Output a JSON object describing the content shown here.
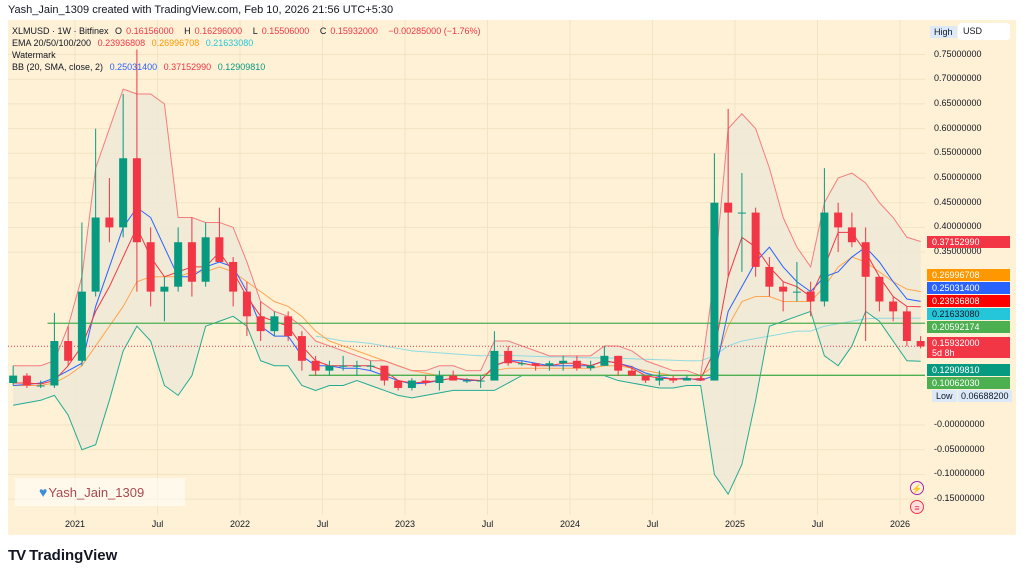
{
  "attribution": "Yash_Jain_1309 created with TradingView.com, Feb 10, 2026 21:56 UTC+5:30",
  "legend": {
    "symbol": "XLMUSD · 1W · Bitfinex",
    "o_label": "O",
    "o": "0.16156000",
    "h_label": "H",
    "h": "0.16296000",
    "l_label": "L",
    "l": "0.15506000",
    "c_label": "C",
    "c": "0.15932000",
    "change": "−0.00285000 (−1.76%)",
    "ema_label": "EMA 20/50/100/200",
    "ema20": "0.23936808",
    "ema50": "0.26996708",
    "ema100": "0.21633080",
    "watermark_label": "Watermark",
    "bb_label": "BB (20, SMA, close, 2)",
    "bb_basis": "0.25031400",
    "bb_upper": "0.37152990",
    "bb_lower": "0.12909810"
  },
  "price_scale": {
    "high_badge": "High",
    "currency": "USD",
    "low_badge": "Low",
    "low_value": "0.06688200",
    "tags": [
      {
        "text": "0.37152990",
        "color": "#f23645",
        "text_color": "#ffffff"
      },
      {
        "text": "0.26996708",
        "color": "#ff9800",
        "text_color": "#ffffff"
      },
      {
        "text": "0.25031400",
        "color": "#2962ff",
        "text_color": "#ffffff"
      },
      {
        "text": "0.23936808",
        "color": "#ff0000",
        "text_color": "#ffffff"
      },
      {
        "text": "0.21633080",
        "color": "#26c6da",
        "text_color": "#131722"
      },
      {
        "text": "0.20592174",
        "color": "#4caf50",
        "text_color": "#ffffff"
      },
      {
        "text": "0.15932000",
        "sub": "5d 8h",
        "color": "#f23645",
        "text_color": "#ffffff"
      },
      {
        "text": "0.12909810",
        "color": "#089981",
        "text_color": "#ffffff"
      },
      {
        "text": "0.10062030",
        "color": "#4caf50",
        "text_color": "#ffffff"
      }
    ]
  },
  "watermark": {
    "text": "Yash_Jain_1309",
    "icon": "blue-heart-icon"
  },
  "branding": {
    "logo_text": "TradingView",
    "logo_mark": "TV"
  },
  "icons": [
    "lightning-icon",
    "us-flag-icon"
  ],
  "colors": {
    "background": "#fef1d6",
    "up": "#089981",
    "down": "#f23645",
    "bb_upper": "#f77c80",
    "bb_lower": "#22ab94",
    "bb_basis": "#2962ff",
    "bb_fill": "#ede9d6",
    "ema20": "#f23645",
    "ema50": "#ffa54f",
    "ema100": "#8fdbe0",
    "hline": "#4caf50"
  },
  "chart_data": {
    "type": "candlestick",
    "title": "XLMUSD · 1W · Bitfinex",
    "ylim": [
      -0.17,
      0.78
    ],
    "grid": true,
    "y_ticks": [
      "0.75000000",
      "0.70000000",
      "0.65000000",
      "0.60000000",
      "0.55000000",
      "0.50000000",
      "0.45000000",
      "0.40000000",
      "0.35000000",
      "-0.00000000",
      "-0.05000000",
      "-0.10000000",
      "-0.15000000"
    ],
    "y_tick_values": [
      0.75,
      0.7,
      0.65,
      0.6,
      0.55,
      0.5,
      0.45,
      0.4,
      0.35,
      0,
      -0.05,
      -0.1,
      -0.15
    ],
    "x_ticks": [
      {
        "label": "2021",
        "month": "2021-01"
      },
      {
        "label": "Jul",
        "month": "2021-07"
      },
      {
        "label": "2022",
        "month": "2022-01"
      },
      {
        "label": "Jul",
        "month": "2022-07"
      },
      {
        "label": "2023",
        "month": "2023-01"
      },
      {
        "label": "Jul",
        "month": "2023-07"
      },
      {
        "label": "2024",
        "month": "2024-01"
      },
      {
        "label": "Jul",
        "month": "2024-07"
      },
      {
        "label": "2025",
        "month": "2025-01"
      },
      {
        "label": "Jul",
        "month": "2025-07"
      },
      {
        "label": "2026",
        "month": "2026-01"
      }
    ],
    "start_month": "2020-08",
    "ohlc": [
      [
        0.085,
        0.12,
        0.08,
        0.1
      ],
      [
        0.1,
        0.105,
        0.075,
        0.08
      ],
      [
        0.08,
        0.09,
        0.075,
        0.08
      ],
      [
        0.08,
        0.227,
        0.075,
        0.17
      ],
      [
        0.17,
        0.2,
        0.12,
        0.13
      ],
      [
        0.13,
        0.41,
        0.12,
        0.27
      ],
      [
        0.27,
        0.6,
        0.26,
        0.42
      ],
      [
        0.42,
        0.5,
        0.37,
        0.4
      ],
      [
        0.4,
        0.67,
        0.38,
        0.54
      ],
      [
        0.54,
        0.76,
        0.27,
        0.37
      ],
      [
        0.37,
        0.4,
        0.24,
        0.27
      ],
      [
        0.27,
        0.3,
        0.21,
        0.28
      ],
      [
        0.28,
        0.4,
        0.27,
        0.37
      ],
      [
        0.37,
        0.42,
        0.26,
        0.29
      ],
      [
        0.29,
        0.41,
        0.28,
        0.38
      ],
      [
        0.38,
        0.44,
        0.33,
        0.33
      ],
      [
        0.33,
        0.34,
        0.24,
        0.27
      ],
      [
        0.27,
        0.29,
        0.18,
        0.22
      ],
      [
        0.22,
        0.25,
        0.17,
        0.19
      ],
      [
        0.19,
        0.23,
        0.18,
        0.22
      ],
      [
        0.22,
        0.23,
        0.17,
        0.18
      ],
      [
        0.18,
        0.19,
        0.11,
        0.13
      ],
      [
        0.13,
        0.14,
        0.1,
        0.11
      ],
      [
        0.11,
        0.13,
        0.1,
        0.12
      ],
      [
        0.12,
        0.14,
        0.11,
        0.12
      ],
      [
        0.12,
        0.13,
        0.1,
        0.12
      ],
      [
        0.12,
        0.13,
        0.11,
        0.12
      ],
      [
        0.12,
        0.12,
        0.08,
        0.09
      ],
      [
        0.09,
        0.09,
        0.07,
        0.075
      ],
      [
        0.075,
        0.095,
        0.07,
        0.09
      ],
      [
        0.09,
        0.1,
        0.08,
        0.085
      ],
      [
        0.085,
        0.11,
        0.07,
        0.1
      ],
      [
        0.1,
        0.11,
        0.09,
        0.09
      ],
      [
        0.09,
        0.095,
        0.085,
        0.09
      ],
      [
        0.09,
        0.1,
        0.075,
        0.09
      ],
      [
        0.09,
        0.19,
        0.09,
        0.15
      ],
      [
        0.15,
        0.16,
        0.12,
        0.125
      ],
      [
        0.125,
        0.13,
        0.12,
        0.125
      ],
      [
        0.125,
        0.125,
        0.11,
        0.12
      ],
      [
        0.12,
        0.13,
        0.11,
        0.125
      ],
      [
        0.125,
        0.14,
        0.11,
        0.13
      ],
      [
        0.13,
        0.14,
        0.11,
        0.115
      ],
      [
        0.115,
        0.13,
        0.11,
        0.12
      ],
      [
        0.12,
        0.16,
        0.12,
        0.14
      ],
      [
        0.14,
        0.14,
        0.1,
        0.11
      ],
      [
        0.11,
        0.12,
        0.1,
        0.1
      ],
      [
        0.1,
        0.1,
        0.085,
        0.09
      ],
      [
        0.09,
        0.11,
        0.08,
        0.095
      ],
      [
        0.095,
        0.1,
        0.085,
        0.09
      ],
      [
        0.09,
        0.1,
        0.09,
        0.095
      ],
      [
        0.095,
        0.1,
        0.09,
        0.09
      ],
      [
        0.09,
        0.55,
        0.09,
        0.45
      ],
      [
        0.45,
        0.64,
        0.3,
        0.43
      ],
      [
        0.43,
        0.51,
        0.31,
        0.43
      ],
      [
        0.43,
        0.44,
        0.3,
        0.32
      ],
      [
        0.32,
        0.34,
        0.26,
        0.28
      ],
      [
        0.28,
        0.29,
        0.23,
        0.27
      ],
      [
        0.27,
        0.33,
        0.25,
        0.27
      ],
      [
        0.27,
        0.29,
        0.22,
        0.25
      ],
      [
        0.25,
        0.52,
        0.24,
        0.43
      ],
      [
        0.43,
        0.45,
        0.35,
        0.4
      ],
      [
        0.4,
        0.43,
        0.36,
        0.37
      ],
      [
        0.37,
        0.4,
        0.17,
        0.3
      ],
      [
        0.3,
        0.3,
        0.23,
        0.25
      ],
      [
        0.25,
        0.26,
        0.21,
        0.23
      ],
      [
        0.23,
        0.24,
        0.16,
        0.17
      ],
      [
        0.17,
        0.18,
        0.155,
        0.159
      ]
    ],
    "bb_upper": [
      0.12,
      0.12,
      0.12,
      0.13,
      0.2,
      0.3,
      0.52,
      0.6,
      0.68,
      0.67,
      0.67,
      0.65,
      0.42,
      0.42,
      0.41,
      0.41,
      0.4,
      0.33,
      0.25,
      0.23,
      0.22,
      0.2,
      0.17,
      0.16,
      0.15,
      0.14,
      0.13,
      0.13,
      0.12,
      0.11,
      0.11,
      0.12,
      0.12,
      0.11,
      0.11,
      0.17,
      0.17,
      0.16,
      0.15,
      0.14,
      0.14,
      0.14,
      0.14,
      0.16,
      0.16,
      0.15,
      0.13,
      0.12,
      0.11,
      0.11,
      0.1,
      0.3,
      0.6,
      0.63,
      0.6,
      0.52,
      0.42,
      0.36,
      0.32,
      0.45,
      0.5,
      0.51,
      0.49,
      0.45,
      0.42,
      0.38,
      0.3715
    ],
    "bb_lower": [
      0.04,
      0.045,
      0.05,
      0.06,
      0.02,
      -0.05,
      -0.04,
      0.05,
      0.15,
      0.2,
      0.17,
      0.08,
      0.06,
      0.1,
      0.2,
      0.21,
      0.22,
      0.2,
      0.13,
      0.12,
      0.12,
      0.08,
      0.07,
      0.08,
      0.08,
      0.09,
      0.08,
      0.07,
      0.06,
      0.055,
      0.06,
      0.065,
      0.07,
      0.07,
      0.07,
      0.07,
      0.085,
      0.1,
      0.1,
      0.1,
      0.1,
      0.1,
      0.1,
      0.1,
      0.09,
      0.085,
      0.08,
      0.075,
      0.075,
      0.08,
      0.08,
      -0.1,
      -0.14,
      -0.08,
      0.05,
      0.2,
      0.21,
      0.22,
      0.23,
      0.14,
      0.12,
      0.16,
      0.23,
      0.21,
      0.17,
      0.13,
      0.1291
    ],
    "bb_basis": [
      0.08,
      0.082,
      0.085,
      0.095,
      0.11,
      0.125,
      0.24,
      0.32,
      0.4,
      0.44,
      0.42,
      0.36,
      0.3,
      0.3,
      0.32,
      0.33,
      0.32,
      0.27,
      0.2,
      0.18,
      0.18,
      0.14,
      0.12,
      0.12,
      0.115,
      0.115,
      0.11,
      0.1,
      0.09,
      0.083,
      0.085,
      0.09,
      0.095,
      0.09,
      0.09,
      0.12,
      0.13,
      0.13,
      0.125,
      0.12,
      0.12,
      0.12,
      0.12,
      0.13,
      0.125,
      0.118,
      0.105,
      0.098,
      0.093,
      0.095,
      0.09,
      0.1,
      0.23,
      0.28,
      0.33,
      0.36,
      0.32,
      0.29,
      0.27,
      0.3,
      0.31,
      0.34,
      0.36,
      0.33,
      0.29,
      0.255,
      0.2503
    ],
    "ema20": [
      0.085,
      0.085,
      0.083,
      0.09,
      0.12,
      0.16,
      0.23,
      0.28,
      0.34,
      0.4,
      0.34,
      0.3,
      0.31,
      0.32,
      0.32,
      0.35,
      0.31,
      0.26,
      0.22,
      0.21,
      0.2,
      0.16,
      0.13,
      0.12,
      0.12,
      0.12,
      0.12,
      0.11,
      0.09,
      0.085,
      0.087,
      0.09,
      0.095,
      0.092,
      0.09,
      0.12,
      0.13,
      0.125,
      0.12,
      0.12,
      0.125,
      0.125,
      0.12,
      0.13,
      0.125,
      0.115,
      0.1,
      0.095,
      0.093,
      0.093,
      0.093,
      0.15,
      0.3,
      0.38,
      0.36,
      0.32,
      0.29,
      0.28,
      0.26,
      0.32,
      0.39,
      0.39,
      0.35,
      0.3,
      0.26,
      0.24,
      0.2394
    ],
    "ema50": [
      0.08,
      0.08,
      0.08,
      0.085,
      0.1,
      0.12,
      0.16,
      0.2,
      0.24,
      0.29,
      0.3,
      0.3,
      0.3,
      0.31,
      0.31,
      0.32,
      0.31,
      0.29,
      0.27,
      0.25,
      0.24,
      0.22,
      0.19,
      0.17,
      0.16,
      0.15,
      0.14,
      0.13,
      0.12,
      0.11,
      0.105,
      0.1,
      0.1,
      0.1,
      0.1,
      0.11,
      0.115,
      0.115,
      0.115,
      0.115,
      0.115,
      0.115,
      0.115,
      0.12,
      0.12,
      0.115,
      0.11,
      0.105,
      0.1,
      0.1,
      0.1,
      0.12,
      0.2,
      0.25,
      0.26,
      0.26,
      0.25,
      0.25,
      0.25,
      0.28,
      0.32,
      0.34,
      0.33,
      0.31,
      0.29,
      0.275,
      0.27
    ],
    "ema100": [
      null,
      null,
      null,
      null,
      null,
      null,
      null,
      null,
      null,
      null,
      null,
      null,
      null,
      null,
      null,
      null,
      null,
      null,
      null,
      null,
      null,
      null,
      0.18,
      0.175,
      0.17,
      0.168,
      0.165,
      0.16,
      0.155,
      0.15,
      0.148,
      0.146,
      0.144,
      0.142,
      0.14,
      0.141,
      0.141,
      0.14,
      0.139,
      0.138,
      0.138,
      0.137,
      0.136,
      0.136,
      0.135,
      0.134,
      0.133,
      0.132,
      0.131,
      0.13,
      0.13,
      0.14,
      0.16,
      0.17,
      0.175,
      0.18,
      0.185,
      0.19,
      0.19,
      0.2,
      0.205,
      0.21,
      0.215,
      0.216,
      0.216,
      0.216,
      0.2163
    ],
    "hlines": [
      {
        "value": 0.20592174,
        "from_month": "2020-11"
      },
      {
        "value": 0.1006203,
        "from_month": "2022-06"
      }
    ],
    "last_price": 0.15932
  }
}
